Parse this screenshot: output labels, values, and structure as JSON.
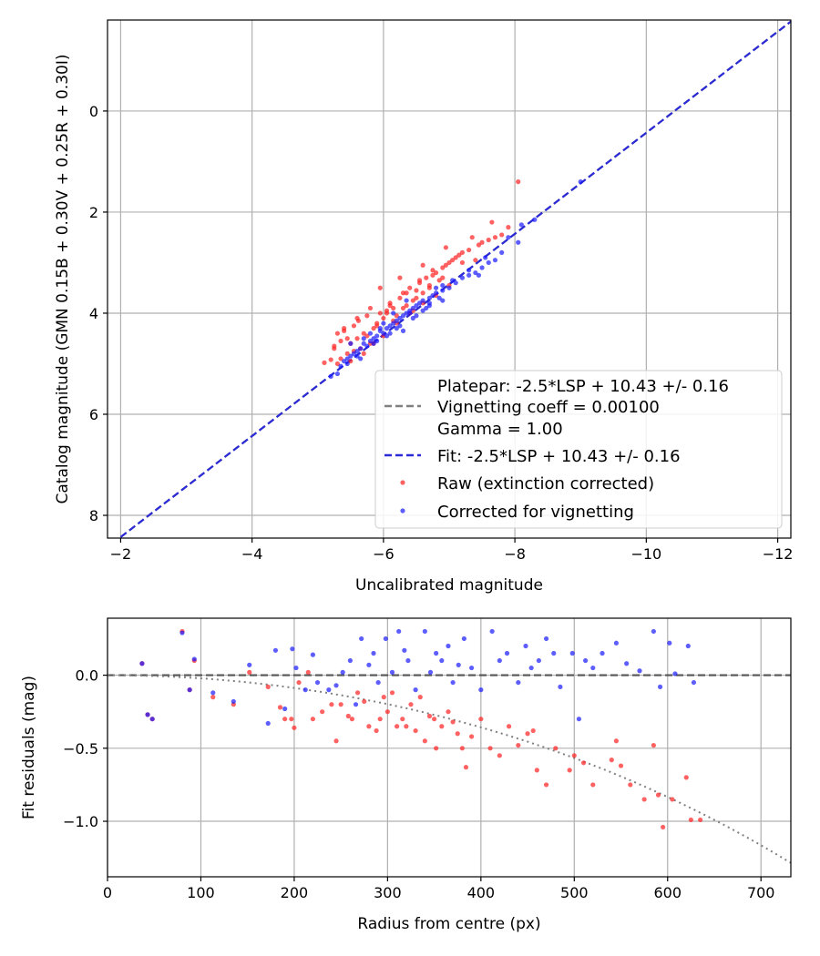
{
  "chart_data": [
    {
      "type": "scatter",
      "xlabel": "Uncalibrated magnitude",
      "ylabel": "Catalog magnitude (GMN 0.15B + 0.30V + 0.25R + 0.30I)",
      "xlim": [
        -1.8,
        -12.2
      ],
      "ylim": [
        8.45,
        -1.8
      ],
      "x_ticks": [
        -2,
        -4,
        -6,
        -8,
        -10,
        -12
      ],
      "x_tick_labels": [
        "−2",
        "−4",
        "−6",
        "−8",
        "−10",
        "−12"
      ],
      "y_ticks": [
        0,
        2,
        4,
        6,
        8
      ],
      "y_tick_labels": [
        "0",
        "2",
        "4",
        "6",
        "8"
      ],
      "grid": true,
      "legend_position": "lower-right",
      "legend": {
        "platepar": "Platepar: -2.5*LSP + 10.43 +/- 0.16",
        "vignetting": "Vignetting coeff = 0.00100",
        "gamma": "Gamma = 1.00",
        "fit": "Fit: -2.5*LSP + 10.43 +/- 0.16",
        "raw": "Raw (extinction corrected)",
        "corrected": "Corrected for vignetting"
      },
      "lines": [
        {
          "name": "Platepar",
          "color": "#808080",
          "style": "dashed",
          "x": [
            -2,
            -12.2
          ],
          "y": [
            8.43,
            -1.77
          ]
        },
        {
          "name": "Fit",
          "color": "#2a2ad6",
          "style": "dashed",
          "x": [
            -2,
            -12.2
          ],
          "y": [
            8.43,
            -1.77
          ]
        }
      ],
      "series": [
        {
          "name": "Raw (extinction corrected)",
          "color": "#ff2020",
          "x": [
            -5.1,
            -5.2,
            -5.25,
            -5.3,
            -5.35,
            -5.4,
            -5.45,
            -5.5,
            -5.55,
            -5.6,
            -5.62,
            -5.7,
            -5.75,
            -5.8,
            -5.85,
            -5.9,
            -5.95,
            -6.0,
            -6.05,
            -6.1,
            -6.15,
            -6.2,
            -6.25,
            -6.3,
            -6.35,
            -6.4,
            -6.45,
            -6.5,
            -6.55,
            -6.6,
            -6.65,
            -6.7,
            -6.75,
            -6.8,
            -6.85,
            -6.9,
            -6.95,
            -7.0,
            -7.05,
            -7.1,
            -7.2,
            -7.3,
            -7.4,
            -7.5,
            -7.6,
            -7.7,
            -7.8,
            -7.9,
            -8.05,
            -5.3,
            -5.5,
            -5.65,
            -5.8,
            -6.0,
            -6.2,
            -6.4,
            -6.6,
            -6.8,
            -7.0,
            -5.4,
            -5.6,
            -5.9,
            -6.1,
            -6.3,
            -6.5,
            -6.7,
            -6.9,
            -7.2,
            -5.25,
            -5.45,
            -5.75,
            -6.05,
            -6.35,
            -6.55,
            -6.75,
            -7.15,
            -7.45,
            -5.55,
            -5.85,
            -6.15,
            -6.45,
            -5.95,
            -6.25,
            -6.6,
            -6.95,
            -7.35,
            -7.65,
            -5.35,
            -5.7
          ],
          "y": [
            4.98,
            4.92,
            4.7,
            4.4,
            4.55,
            4.3,
            4.8,
            4.6,
            4.25,
            4.5,
            4.15,
            4.4,
            4.05,
            3.9,
            4.3,
            4.2,
            4.0,
            4.1,
            3.95,
            3.8,
            3.9,
            4.05,
            3.7,
            3.6,
            3.85,
            3.5,
            3.75,
            3.55,
            3.4,
            3.6,
            3.3,
            3.5,
            3.25,
            3.2,
            3.35,
            3.1,
            3.05,
            3.0,
            2.95,
            2.9,
            2.8,
            2.75,
            2.95,
            2.6,
            2.55,
            2.5,
            2.45,
            2.3,
            1.4,
            5.0,
            4.95,
            4.7,
            4.6,
            4.45,
            4.2,
            4.0,
            3.8,
            3.65,
            3.45,
            4.35,
            4.1,
            4.25,
            3.85,
            3.9,
            3.7,
            3.45,
            3.3,
            3.0,
            4.65,
            4.5,
            4.45,
            4.0,
            3.6,
            3.35,
            3.15,
            2.85,
            2.65,
            4.75,
            4.6,
            4.15,
            3.95,
            3.5,
            3.3,
            3.05,
            2.7,
            2.5,
            2.2,
            4.9,
            4.8
          ]
        },
        {
          "name": "Corrected for vignetting",
          "color": "#1a1aff",
          "x": [
            -5.3,
            -5.35,
            -5.4,
            -5.45,
            -5.5,
            -5.55,
            -5.6,
            -5.65,
            -5.7,
            -5.75,
            -5.8,
            -5.85,
            -5.9,
            -5.95,
            -6.0,
            -6.05,
            -6.1,
            -6.15,
            -6.2,
            -6.25,
            -6.3,
            -6.35,
            -6.4,
            -6.45,
            -6.5,
            -6.55,
            -6.6,
            -6.65,
            -6.7,
            -6.75,
            -6.8,
            -6.85,
            -6.9,
            -7.0,
            -7.1,
            -7.2,
            -7.3,
            -7.4,
            -7.5,
            -7.6,
            -7.7,
            -7.8,
            -7.9,
            -8.1,
            -8.3,
            -9.0,
            -5.5,
            -5.7,
            -5.9,
            -6.1,
            -6.3,
            -6.5,
            -6.7,
            -6.9,
            -7.3,
            -5.6,
            -5.8,
            -6.0,
            -6.2,
            -6.4,
            -6.6,
            -6.8,
            -7.05,
            -7.55,
            -5.45,
            -5.65,
            -5.85,
            -6.05,
            -6.25,
            -6.45,
            -6.7,
            -7.45,
            -8.05,
            -5.2,
            -6.35,
            -6.9,
            -5.95,
            -6.15
          ],
          "y": [
            5.2,
            5.05,
            4.95,
            4.9,
            4.85,
            4.8,
            4.75,
            4.7,
            4.6,
            4.65,
            4.55,
            4.5,
            4.45,
            4.35,
            4.4,
            4.3,
            4.25,
            4.2,
            4.15,
            4.1,
            4.05,
            4.0,
            3.95,
            3.9,
            3.85,
            3.8,
            3.75,
            3.9,
            3.7,
            3.65,
            3.6,
            3.7,
            3.55,
            3.5,
            3.4,
            3.3,
            3.25,
            3.2,
            3.1,
            3.0,
            2.95,
            2.8,
            2.5,
            2.25,
            2.15,
            1.4,
            4.6,
            4.5,
            4.55,
            4.4,
            4.35,
            4.05,
            3.8,
            3.75,
            3.15,
            4.85,
            4.4,
            4.2,
            4.3,
            4.0,
            3.95,
            3.5,
            3.35,
            2.9,
            5.0,
            4.9,
            4.6,
            4.45,
            4.25,
            4.1,
            3.85,
            3.25,
            2.6,
            5.25,
            3.75,
            3.45,
            4.3,
            4.0
          ]
        }
      ]
    },
    {
      "type": "scatter",
      "xlabel": "Radius from centre (px)",
      "ylabel": "Fit residuals (mag)",
      "xlim": [
        0,
        732
      ],
      "ylim": [
        -1.38,
        0.39
      ],
      "x_ticks": [
        0,
        100,
        200,
        300,
        400,
        500,
        600,
        700
      ],
      "x_tick_labels": [
        "0",
        "100",
        "200",
        "300",
        "400",
        "500",
        "600",
        "700"
      ],
      "y_ticks": [
        0.0,
        -0.5,
        -1.0
      ],
      "y_tick_labels": [
        "0.0",
        "−0.5",
        "−1.0"
      ],
      "grid": true,
      "lines": [
        {
          "name": "Zero",
          "color": "#555555",
          "style": "dashed",
          "x": [
            0,
            732
          ],
          "y": [
            0,
            0
          ]
        },
        {
          "name": "Vignetting model",
          "color": "#808080",
          "style": "dotted",
          "function": "vignetting",
          "coeff": 0.001
        }
      ],
      "series": [
        {
          "name": "Raw",
          "color": "#ff2020",
          "x": [
            37,
            43,
            48,
            80,
            88,
            93,
            113,
            135,
            152,
            172,
            185,
            190,
            197,
            200,
            205,
            215,
            220,
            230,
            240,
            245,
            250,
            258,
            262,
            268,
            275,
            280,
            288,
            292,
            296,
            300,
            305,
            310,
            316,
            320,
            325,
            330,
            335,
            340,
            345,
            350,
            352,
            358,
            365,
            370,
            375,
            380,
            384,
            390,
            400,
            410,
            420,
            430,
            440,
            450,
            456,
            460,
            470,
            480,
            495,
            500,
            510,
            520,
            540,
            545,
            550,
            560,
            575,
            585,
            590,
            595,
            605,
            620,
            625,
            635
          ],
          "y": [
            0.08,
            -0.27,
            -0.3,
            0.3,
            -0.1,
            0.1,
            -0.15,
            -0.2,
            0.02,
            -0.08,
            -0.22,
            -0.3,
            -0.3,
            -0.36,
            -0.05,
            0.02,
            -0.3,
            -0.25,
            -0.2,
            -0.45,
            -0.2,
            -0.28,
            -0.3,
            -0.12,
            -0.18,
            -0.35,
            -0.38,
            -0.3,
            -0.15,
            -0.25,
            -0.12,
            -0.35,
            -0.3,
            -0.35,
            -0.2,
            -0.38,
            -0.15,
            -0.45,
            -0.28,
            -0.3,
            -0.5,
            -0.35,
            -0.25,
            -0.32,
            -0.4,
            -0.5,
            -0.63,
            -0.42,
            -0.3,
            -0.5,
            -0.55,
            -0.35,
            -0.48,
            -0.4,
            -0.38,
            -0.65,
            -0.75,
            -0.5,
            -0.65,
            -0.55,
            -0.6,
            -0.75,
            -0.58,
            -0.45,
            -0.62,
            -0.75,
            -0.85,
            -0.48,
            -0.82,
            -1.04,
            -0.85,
            -0.7,
            -0.99,
            -0.99
          ]
        },
        {
          "name": "Corrected",
          "color": "#1a1aff",
          "x": [
            37,
            43,
            48,
            80,
            88,
            93,
            113,
            135,
            152,
            172,
            180,
            190,
            198,
            202,
            212,
            220,
            225,
            237,
            245,
            252,
            260,
            266,
            272,
            280,
            285,
            290,
            298,
            305,
            312,
            318,
            322,
            330,
            340,
            346,
            352,
            358,
            365,
            370,
            376,
            382,
            390,
            400,
            412,
            420,
            428,
            440,
            448,
            454,
            462,
            470,
            478,
            485,
            498,
            505,
            512,
            520,
            530,
            545,
            556,
            570,
            585,
            592,
            602,
            608,
            622,
            628
          ],
          "y": [
            0.08,
            -0.27,
            -0.3,
            0.29,
            -0.1,
            0.11,
            -0.12,
            -0.18,
            0.07,
            -0.33,
            0.17,
            -0.23,
            0.18,
            0.05,
            -0.1,
            0.14,
            -0.05,
            -0.1,
            -0.07,
            0.02,
            0.1,
            -0.2,
            0.25,
            0.07,
            0.15,
            -0.05,
            0.25,
            0.02,
            0.3,
            0.17,
            0.1,
            -0.1,
            0.3,
            0.02,
            0.15,
            0.1,
            0.2,
            -0.05,
            0.07,
            0.25,
            0.05,
            -0.1,
            0.3,
            0.1,
            0.15,
            -0.05,
            0.2,
            0.05,
            0.1,
            0.25,
            0.15,
            -0.08,
            0.15,
            -0.3,
            0.1,
            0.05,
            0.15,
            0.22,
            0.08,
            0.03,
            0.3,
            -0.08,
            0.22,
            0.01,
            0.2,
            -0.05
          ]
        }
      ]
    }
  ]
}
